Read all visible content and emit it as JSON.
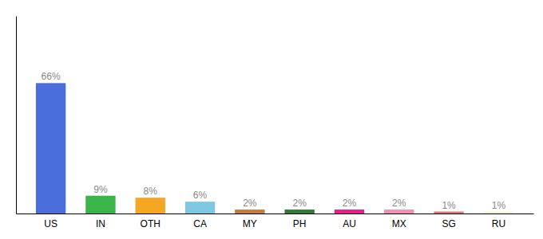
{
  "chart_data": {
    "type": "bar",
    "categories": [
      "US",
      "IN",
      "OTH",
      "CA",
      "MY",
      "PH",
      "AU",
      "MX",
      "SG",
      "RU"
    ],
    "values": [
      66,
      9,
      8,
      6,
      2,
      2,
      2,
      2,
      1,
      1
    ],
    "value_labels": [
      "66%",
      "9%",
      "8%",
      "6%",
      "2%",
      "2%",
      "2%",
      "2%",
      "1%",
      "1%"
    ],
    "colors": [
      "#4a6fdc",
      "#3ab54a",
      "#f5a623",
      "#7ec8e3",
      "#c67c3a",
      "#2e7d32",
      "#e91e8c",
      "#f48fb1",
      "#e57373",
      "#f5f0d8"
    ],
    "ylim": [
      0,
      100
    ],
    "data_labels": true,
    "tick_labels": "x",
    "grid": false
  }
}
